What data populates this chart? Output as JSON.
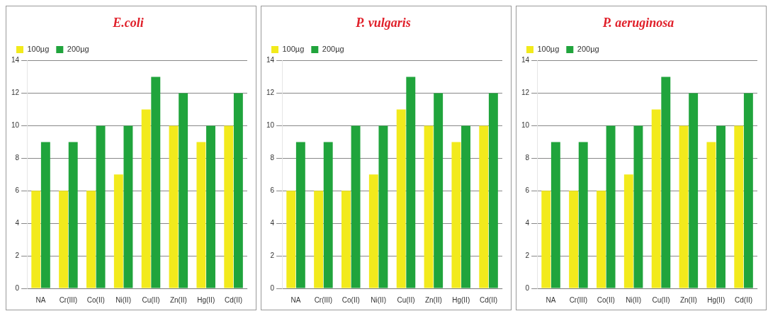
{
  "chart_data": [
    {
      "type": "bar",
      "title": "E.coli",
      "categories": [
        "NA",
        "Cr(III)",
        "Co(II)",
        "Ni(II)",
        "Cu(II)",
        "Zn(II)",
        "Hg(II)",
        "Cd(II)"
      ],
      "series": [
        {
          "name": "100µg",
          "color": "#f2ea1c",
          "values": [
            6,
            6,
            6,
            7,
            11,
            10,
            9,
            10
          ]
        },
        {
          "name": "200µg",
          "color": "#20a43c",
          "values": [
            9,
            9,
            10,
            10,
            13,
            12,
            10,
            12
          ]
        }
      ],
      "ylim": [
        0,
        14
      ],
      "yticks": [
        0,
        2,
        4,
        6,
        8,
        10,
        12,
        14
      ],
      "grid": "y",
      "legend": "top left"
    },
    {
      "type": "bar",
      "title": "P. vulgaris",
      "categories": [
        "NA",
        "Cr(III)",
        "Co(II)",
        "Ni(II)",
        "Cu(II)",
        "Zn(II)",
        "Hg(II)",
        "Cd(II)"
      ],
      "series": [
        {
          "name": "100µg",
          "color": "#f2ea1c",
          "values": [
            6,
            6,
            6,
            7,
            11,
            10,
            9,
            10
          ]
        },
        {
          "name": "200µg",
          "color": "#20a43c",
          "values": [
            9,
            9,
            10,
            10,
            13,
            12,
            10,
            12
          ]
        }
      ],
      "ylim": [
        0,
        14
      ],
      "yticks": [
        0,
        2,
        4,
        6,
        8,
        10,
        12,
        14
      ],
      "grid": "y",
      "legend": "top left"
    },
    {
      "type": "bar",
      "title": "P. aeruginosa",
      "categories": [
        "NA",
        "Cr(III)",
        "Co(II)",
        "Ni(II)",
        "Cu(II)",
        "Zn(II)",
        "Hg(II)",
        "Cd(II)"
      ],
      "series": [
        {
          "name": "100µg",
          "color": "#f2ea1c",
          "values": [
            6,
            6,
            6,
            7,
            11,
            10,
            9,
            10
          ]
        },
        {
          "name": "200µg",
          "color": "#20a43c",
          "values": [
            9,
            9,
            10,
            10,
            13,
            12,
            10,
            12
          ]
        }
      ],
      "ylim": [
        0,
        14
      ],
      "yticks": [
        0,
        2,
        4,
        6,
        8,
        10,
        12,
        14
      ],
      "grid": "y",
      "legend": "top left"
    }
  ]
}
